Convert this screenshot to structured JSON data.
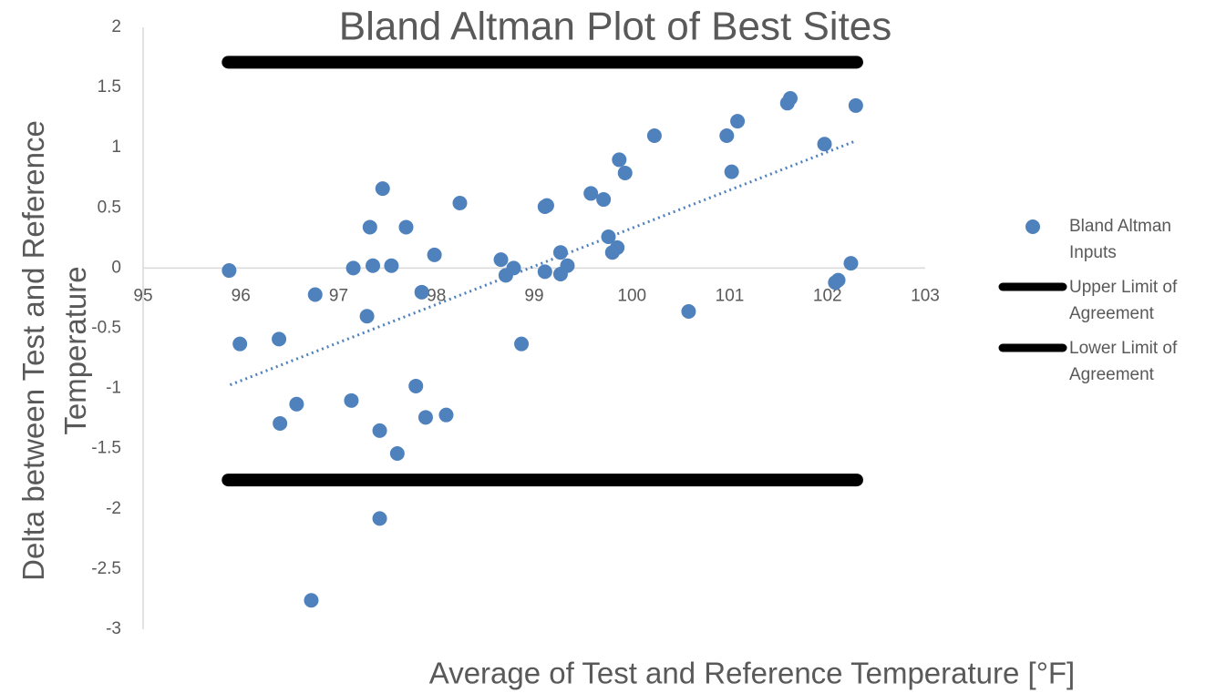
{
  "chart_data": {
    "type": "scatter",
    "title": "Bland Altman Plot of Best Sites",
    "x_label": "Average of Test and Reference Temperature [°F]",
    "y_label": "Delta between Test and Reference Temperature",
    "xlim": [
      95,
      103
    ],
    "xticks": [
      95,
      96,
      97,
      98,
      99,
      100,
      101,
      102,
      103
    ],
    "ylim": [
      -3,
      2
    ],
    "yticks": [
      -3,
      -2.5,
      -2,
      -1.5,
      -1,
      -0.5,
      0,
      0.5,
      1,
      1.5,
      2
    ],
    "legend": "right",
    "series": [
      {
        "name": "Bland Altman Inputs",
        "color": "#4f81bd",
        "mode": "markers",
        "x": [
          95.88,
          95.99,
          96.39,
          96.4,
          96.57,
          96.72,
          96.76,
          97.13,
          97.15,
          97.29,
          97.32,
          97.35,
          97.42,
          97.42,
          97.45,
          97.54,
          97.6,
          97.69,
          97.79,
          97.85,
          97.89,
          97.98,
          98.1,
          98.24,
          98.66,
          98.71,
          98.79,
          98.87,
          99.11,
          99.11,
          99.13,
          99.27,
          99.27,
          99.34,
          99.58,
          99.71,
          99.76,
          99.8,
          99.85,
          99.87,
          99.93,
          100.23,
          100.58,
          100.97,
          101.02,
          101.08,
          101.59,
          101.62,
          101.97,
          102.08,
          102.11,
          102.24,
          102.29
        ],
        "values": [
          -0.02,
          -0.63,
          -0.59,
          -1.29,
          -1.13,
          -2.76,
          -0.22,
          -1.1,
          0.0,
          -0.4,
          0.34,
          0.02,
          -1.35,
          -2.08,
          0.66,
          0.02,
          -1.54,
          0.34,
          -0.98,
          -0.2,
          -1.24,
          0.11,
          -1.22,
          0.54,
          0.07,
          -0.06,
          0.0,
          -0.63,
          -0.03,
          0.51,
          0.52,
          0.13,
          -0.05,
          0.02,
          0.62,
          0.57,
          0.26,
          0.13,
          0.17,
          0.9,
          0.79,
          1.1,
          -0.36,
          1.1,
          0.8,
          1.22,
          1.37,
          1.41,
          1.03,
          -0.12,
          -0.1,
          0.04,
          1.35
        ]
      },
      {
        "name": "Upper Limit of Agreement",
        "color": "#000000",
        "mode": "line",
        "x": [
          95.87,
          102.3
        ],
        "values": [
          1.71,
          1.71
        ]
      },
      {
        "name": "Lower Limit of Agreement",
        "color": "#000000",
        "mode": "line",
        "x": [
          95.87,
          102.3
        ],
        "values": [
          -1.76,
          -1.76
        ]
      }
    ],
    "trendline": {
      "color": "#4f81bd",
      "x": [
        95.89,
        102.3
      ],
      "values": [
        -0.97,
        1.06
      ]
    }
  }
}
